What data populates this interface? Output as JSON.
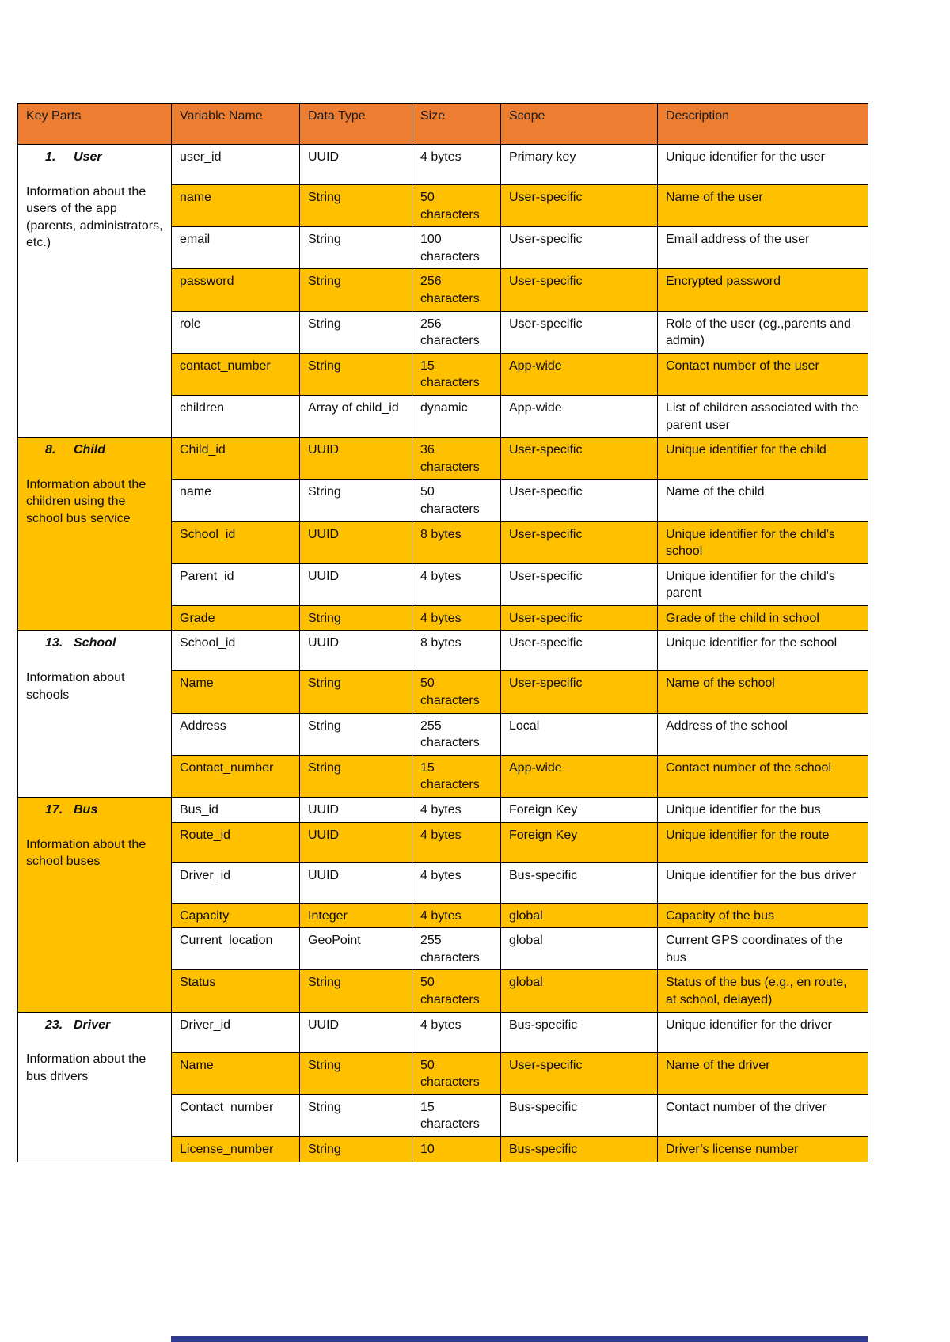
{
  "colors": {
    "header_bg": "#ED7D31",
    "highlight_bg": "#FFC000",
    "border": "#000000",
    "next_page_strip_bg": "#2b3a8e"
  },
  "header": [
    "Key Parts",
    "Variable Name",
    "Data Type",
    "Size",
    "Scope",
    "Description"
  ],
  "sections": [
    {
      "num": "1.",
      "title": "User",
      "description": "Information about the users of the app (parents, administrators, etc.)",
      "highlight": false,
      "rows": [
        {
          "highlight": false,
          "cells": [
            "user_id",
            "UUID",
            "4 bytes",
            "Primary key",
            "Unique identifier for the user"
          ]
        },
        {
          "highlight": true,
          "cells": [
            "name",
            "String",
            "50 characters",
            "User-specific",
            "Name of the user"
          ]
        },
        {
          "highlight": false,
          "cells": [
            "email",
            "String",
            "100 characters",
            "User-specific",
            "Email address of the user"
          ]
        },
        {
          "highlight": true,
          "cells": [
            "password",
            "String",
            "256 characters",
            "User-specific",
            "Encrypted password"
          ]
        },
        {
          "highlight": false,
          "cells": [
            "role",
            "String",
            "256 characters",
            "User-specific",
            "Role of the user (eg.,parents and admin)"
          ]
        },
        {
          "highlight": true,
          "cells": [
            "contact_number",
            "String",
            "15 characters",
            "App-wide",
            "Contact number of the user"
          ]
        },
        {
          "highlight": false,
          "cells": [
            "children",
            "Array of child_id",
            "dynamic",
            "App-wide",
            "List of children associated with the parent user"
          ]
        }
      ]
    },
    {
      "num": "8.",
      "title": "Child",
      "description": "Information about the children using the school bus service",
      "highlight": true,
      "rows": [
        {
          "highlight": true,
          "cells": [
            "Child_id",
            "UUID",
            "36 characters",
            "User-specific",
            "Unique identifier for the child"
          ]
        },
        {
          "highlight": false,
          "cells": [
            "name",
            "String",
            "50 characters",
            "User-specific",
            "Name of the child"
          ]
        },
        {
          "highlight": true,
          "cells": [
            "School_id",
            "UUID",
            "8 bytes",
            "User-specific",
            "Unique identifier for the child's school"
          ]
        },
        {
          "highlight": false,
          "cells": [
            "Parent_id",
            "UUID",
            "4 bytes",
            "User-specific",
            "Unique identifier for the child's parent"
          ]
        },
        {
          "highlight": true,
          "compact": true,
          "cells": [
            "Grade",
            "String",
            "4 bytes",
            "User-specific",
            "Grade of the child in school"
          ]
        }
      ]
    },
    {
      "num": "13.",
      "title": "School",
      "description": "Information about schools",
      "highlight": false,
      "rows": [
        {
          "highlight": false,
          "cells": [
            "School_id",
            "UUID",
            "8 bytes",
            "User-specific",
            "Unique identifier for the school"
          ]
        },
        {
          "highlight": true,
          "cells": [
            "Name",
            "String",
            "50 characters",
            "User-specific",
            "Name of the school"
          ]
        },
        {
          "highlight": false,
          "cells": [
            "Address",
            "String",
            "255 characters",
            "Local",
            "Address of the school"
          ]
        },
        {
          "highlight": true,
          "cells": [
            "Contact_number",
            "String",
            "15 characters",
            "App-wide",
            "Contact number of the school"
          ]
        }
      ]
    },
    {
      "num": "17.",
      "title": "Bus",
      "description": "Information about the school buses",
      "highlight": true,
      "rows": [
        {
          "highlight": false,
          "compact": true,
          "cells": [
            "Bus_id",
            "UUID",
            "4 bytes",
            "Foreign Key",
            "Unique identifier for the bus"
          ]
        },
        {
          "highlight": true,
          "cells": [
            "Route_id",
            "UUID",
            "4 bytes",
            "Foreign Key",
            "Unique identifier for the route"
          ]
        },
        {
          "highlight": false,
          "cells": [
            "Driver_id",
            "UUID",
            "4 bytes",
            "Bus-specific",
            "Unique identifier for the bus driver"
          ]
        },
        {
          "highlight": true,
          "compact": true,
          "cells": [
            "Capacity",
            "Integer",
            "4 bytes",
            "global",
            "Capacity of the bus"
          ]
        },
        {
          "highlight": false,
          "cells": [
            "Current_location",
            "GeoPoint",
            "255 characters",
            "global",
            "Current GPS coordinates of the bus"
          ]
        },
        {
          "highlight": true,
          "cells": [
            "Status",
            "String",
            "50 characters",
            "global",
            "Status of the bus (e.g., en route, at school, delayed)"
          ]
        }
      ]
    },
    {
      "num": "23.",
      "title": "Driver",
      "description": "Information about the bus drivers",
      "highlight": false,
      "rows": [
        {
          "highlight": false,
          "cells": [
            "Driver_id",
            "UUID",
            "4 bytes",
            "Bus-specific",
            "Unique identifier for the driver"
          ]
        },
        {
          "highlight": true,
          "cells": [
            "Name",
            "String",
            "50 characters",
            "User-specific",
            "Name of the driver"
          ]
        },
        {
          "highlight": false,
          "cells": [
            "Contact_number",
            "String",
            "15 characters",
            "Bus-specific",
            "Contact number of the driver"
          ]
        },
        {
          "highlight": true,
          "compact": true,
          "cells": [
            "License_number",
            "String",
            "10",
            "Bus-specific",
            "Driver’s license number"
          ]
        }
      ]
    }
  ]
}
